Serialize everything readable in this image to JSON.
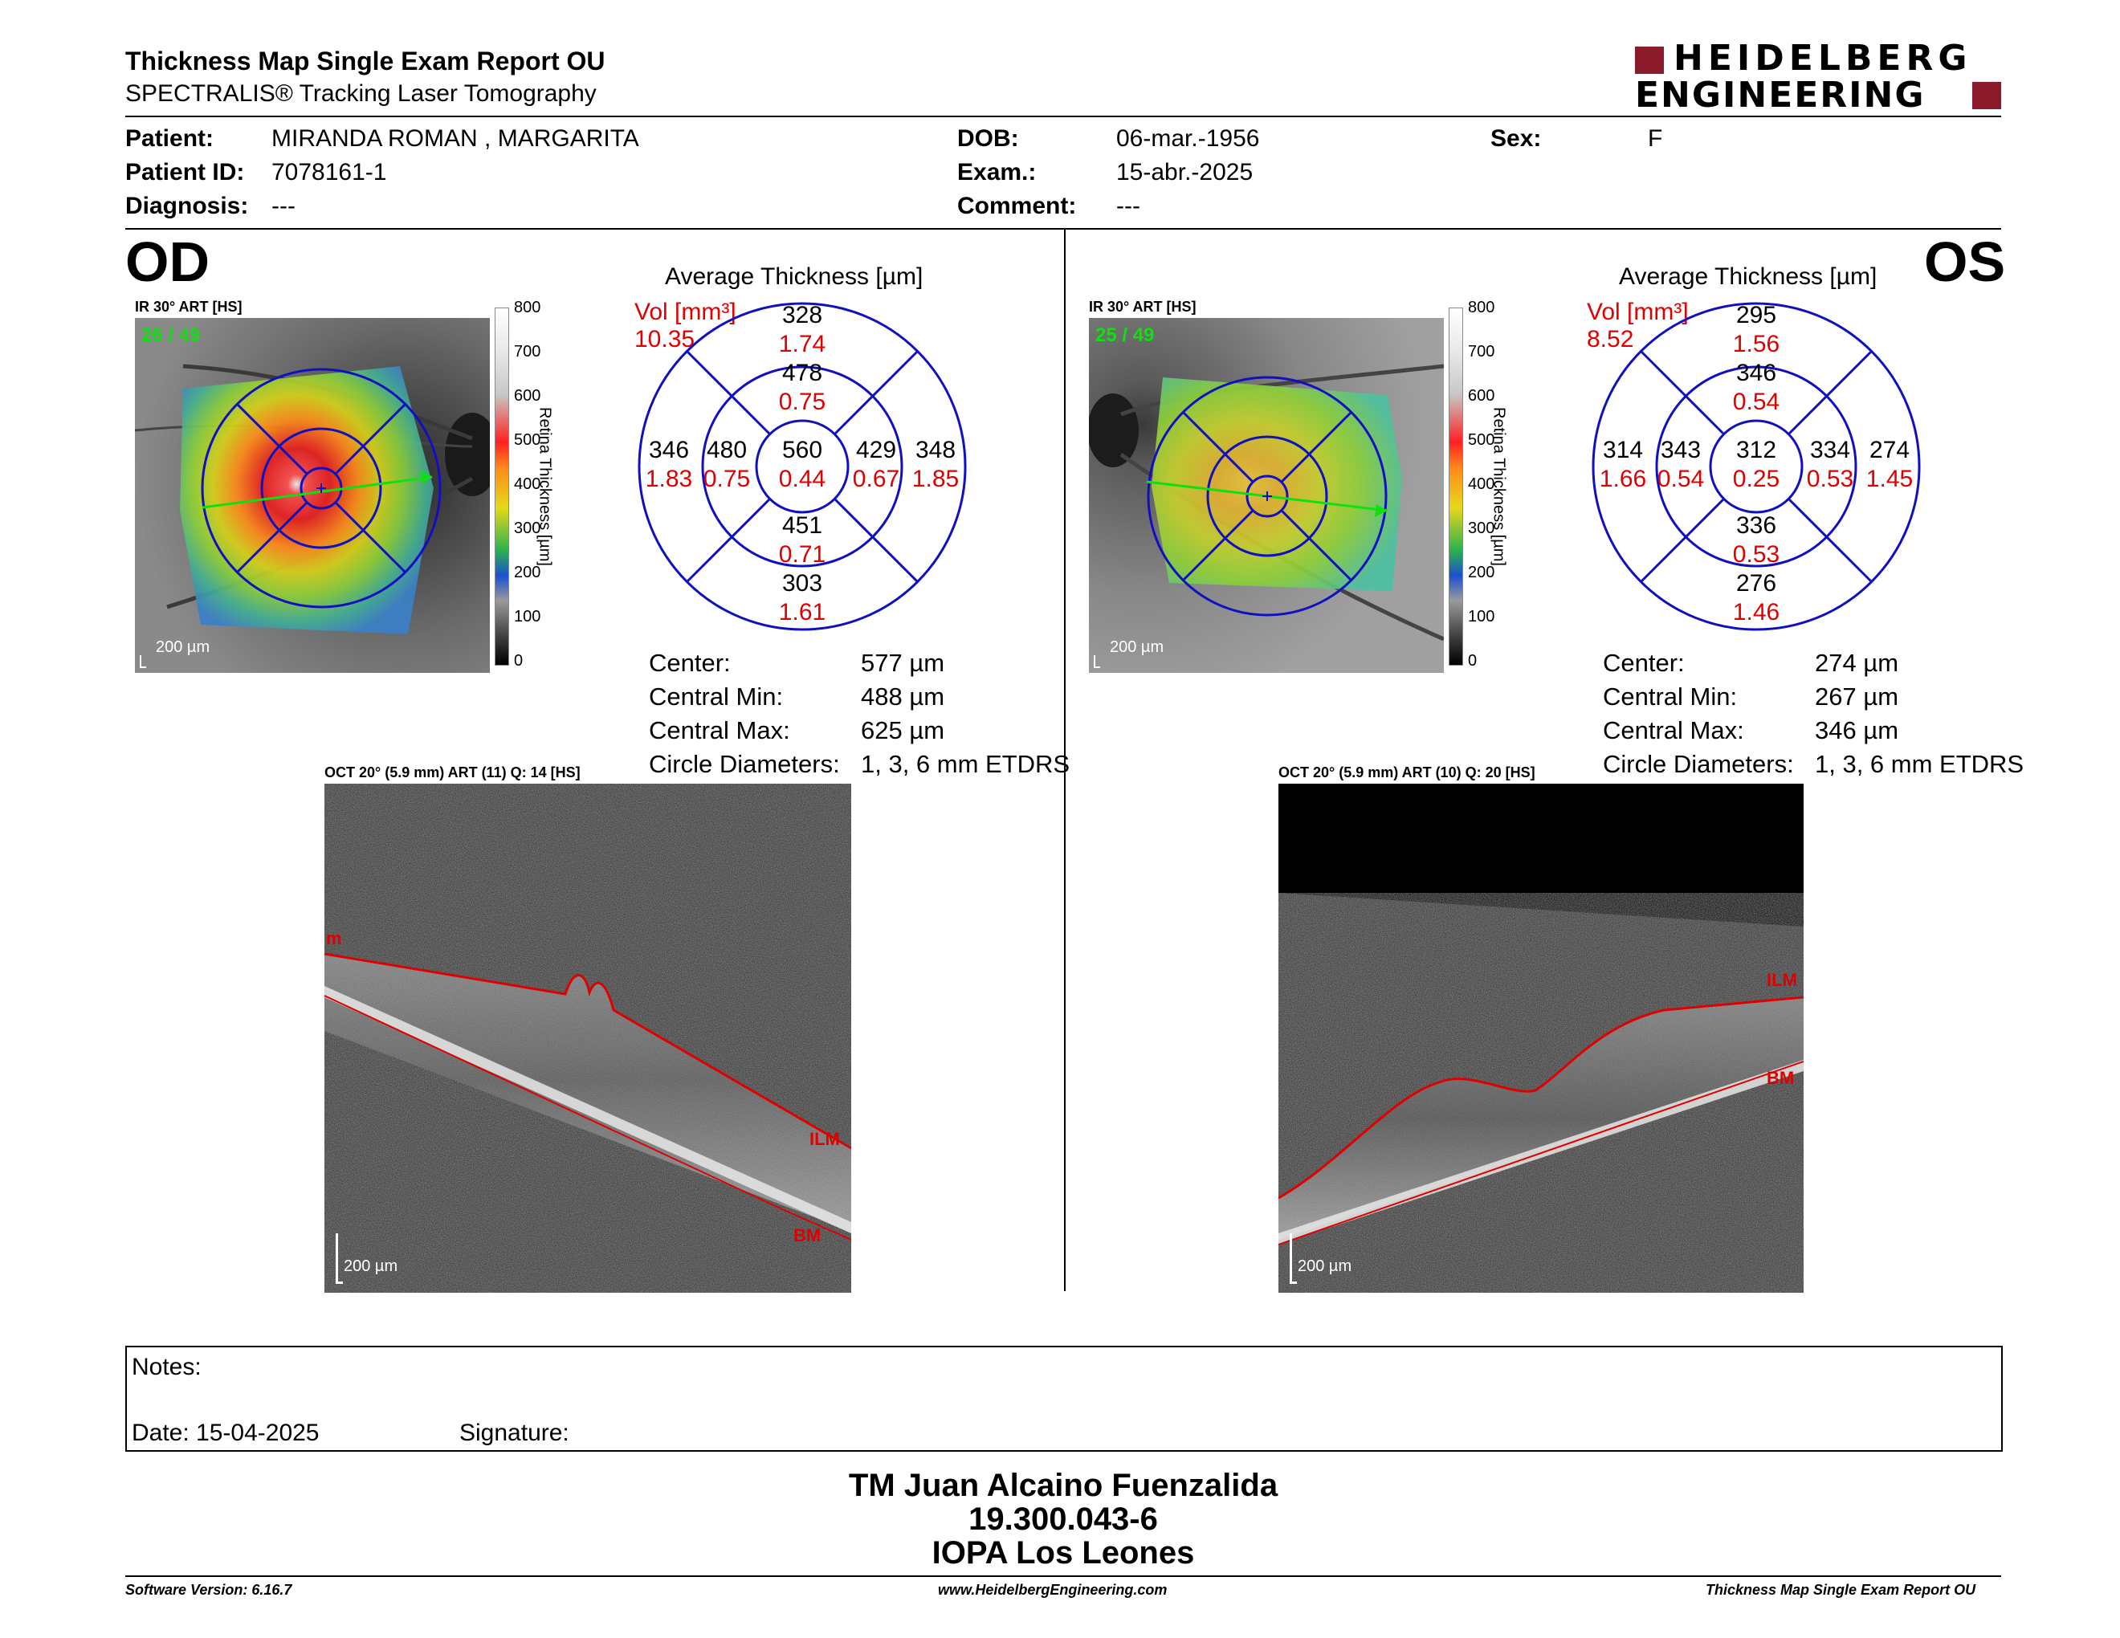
{
  "header": {
    "title": "Thickness Map Single Exam Report OU",
    "subtitle": "SPECTRALIS® Tracking Laser Tomography",
    "logo_line1": "HEIDELBERG",
    "logo_line2": "ENGINEERING",
    "brand_color": "#8b1a2b"
  },
  "patient": {
    "patient_label": "Patient:",
    "patient_value": "MIRANDA ROMAN , MARGARITA",
    "id_label": "Patient ID:",
    "id_value": "7078161-1",
    "diagnosis_label": "Diagnosis:",
    "diagnosis_value": "---",
    "dob_label": "DOB:",
    "dob_value": "06-mar.-1956",
    "exam_label": "Exam.:",
    "exam_value": "15-abr.-2025",
    "comment_label": "Comment:",
    "comment_value": "---",
    "sex_label": "Sex:",
    "sex_value": "F"
  },
  "od": {
    "eye_label": "OD",
    "ir_label": "IR 30° ART [HS]",
    "frame_counter": "26 / 49",
    "scale_bar": "200 µm",
    "avg_title": "Average Thickness [µm]",
    "vol_label": "Vol [mm³]",
    "vol_value": "10.35",
    "sectors": {
      "outer_top": [
        "328",
        "1.74"
      ],
      "inner_top": [
        "478",
        "0.75"
      ],
      "outer_left": [
        "346",
        "1.83"
      ],
      "inner_left": [
        "480",
        "0.75"
      ],
      "center": [
        "560",
        "0.44"
      ],
      "inner_right": [
        "429",
        "0.67"
      ],
      "outer_right": [
        "348",
        "1.85"
      ],
      "inner_bottom": [
        "451",
        "0.71"
      ],
      "outer_bottom": [
        "303",
        "1.61"
      ]
    },
    "stats": {
      "center_label": "Center:",
      "center_value": "577 µm",
      "min_label": "Central Min:",
      "min_value": "488 µm",
      "max_label": "Central Max:",
      "max_value": "625 µm",
      "diam_label": "Circle Diameters:",
      "diam_value": "1, 3, 6 mm ETDRS"
    },
    "oct_label": "OCT 20° (5.9 mm) ART (11) Q: 14 [HS]",
    "oct_scale": "200 µm",
    "ilm_tag_left": "m",
    "ilm_tag": "ILM",
    "bm_tag": "BM"
  },
  "os": {
    "eye_label": "OS",
    "ir_label": "IR 30° ART [HS]",
    "frame_counter": "25 / 49",
    "scale_bar": "200 µm",
    "avg_title": "Average Thickness [µm]",
    "vol_label": "Vol [mm³]",
    "vol_value": "8.52",
    "sectors": {
      "outer_top": [
        "295",
        "1.56"
      ],
      "inner_top": [
        "346",
        "0.54"
      ],
      "outer_left": [
        "314",
        "1.66"
      ],
      "inner_left": [
        "343",
        "0.54"
      ],
      "center": [
        "312",
        "0.25"
      ],
      "inner_right": [
        "334",
        "0.53"
      ],
      "outer_right": [
        "274",
        "1.45"
      ],
      "inner_bottom": [
        "336",
        "0.53"
      ],
      "outer_bottom": [
        "276",
        "1.46"
      ]
    },
    "stats": {
      "center_label": "Center:",
      "center_value": "274 µm",
      "min_label": "Central Min:",
      "min_value": "267 µm",
      "max_label": "Central Max:",
      "max_value": "346 µm",
      "diam_label": "Circle Diameters:",
      "diam_value": "1, 3, 6 mm ETDRS"
    },
    "oct_label": "OCT 20° (5.9 mm) ART (10) Q: 20 [HS]",
    "oct_scale": "200 µm",
    "ilm_tag": "ILM",
    "bm_tag": "BM"
  },
  "colorbar": {
    "ticks": [
      "800",
      "700",
      "600",
      "500",
      "400",
      "300",
      "200",
      "100",
      "0"
    ],
    "label": "Retina Thickness [µm]"
  },
  "notes": {
    "notes_label": "Notes:",
    "date_label": "Date: 15-04-2025",
    "signature_label": "Signature:"
  },
  "signatory": {
    "name": "TM Juan Alcaino Fuenzalida",
    "id": "19.300.043-6",
    "clinic": "IOPA Los Leones"
  },
  "footer": {
    "software": "Software Version: 6.16.7",
    "website": "www.HeidelbergEngineering.com",
    "report": "Thickness Map Single Exam Report OU"
  },
  "colors": {
    "value_red": "#e00000",
    "grid_blue": "#1010c0",
    "scan_green": "#10e010",
    "seg_red": "#e00000"
  }
}
